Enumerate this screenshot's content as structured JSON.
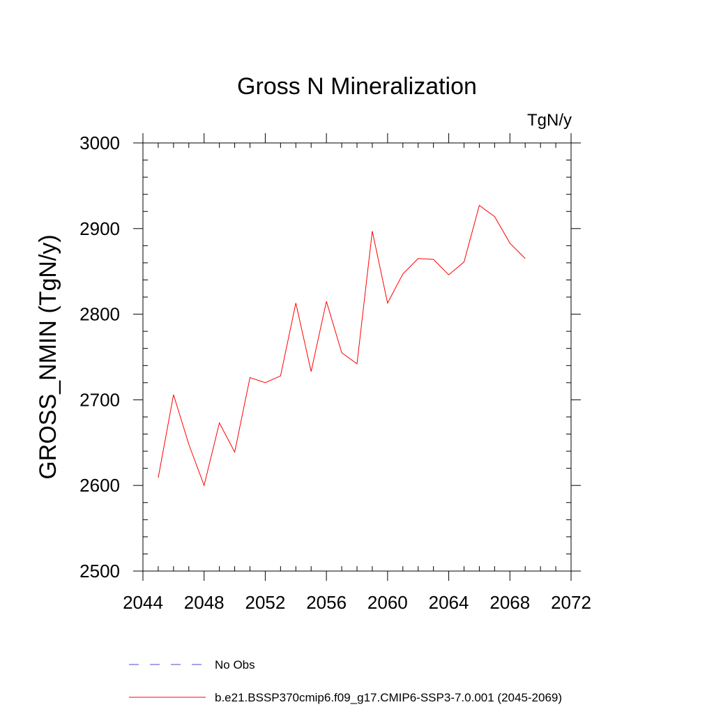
{
  "chart_data": {
    "type": "line",
    "title": "Gross N Mineralization",
    "units_label": "TgN/y",
    "ylabel": "GROSS_NMIN  (TgN/y)",
    "xlabel": "",
    "xlim": [
      2044,
      2072
    ],
    "ylim": [
      2500,
      3000
    ],
    "x_major_ticks": [
      2044,
      2048,
      2052,
      2056,
      2060,
      2064,
      2068,
      2072
    ],
    "x_minor_step": 1,
    "y_major_ticks": [
      2500,
      2600,
      2700,
      2800,
      2900,
      3000
    ],
    "y_minor_step": 20,
    "grid": false,
    "legend_position": "bottom",
    "series": [
      {
        "name": "b.e21.BSSP370cmip6.f09_g17.CMIP6-SSP3-7.0.001 (2045-2069)",
        "color": "#ff0000",
        "style": "solid",
        "x": [
          2045,
          2046,
          2047,
          2048,
          2049,
          2050,
          2051,
          2052,
          2053,
          2054,
          2055,
          2056,
          2057,
          2058,
          2059,
          2060,
          2061,
          2062,
          2063,
          2064,
          2065,
          2066,
          2067,
          2068,
          2069
        ],
        "y": [
          2609,
          2706,
          2648,
          2600,
          2673,
          2639,
          2726,
          2720,
          2728,
          2813,
          2733,
          2815,
          2755,
          2742,
          2897,
          2813,
          2847,
          2865,
          2864,
          2846,
          2861,
          2927,
          2914,
          2883,
          2865
        ]
      }
    ],
    "legend": [
      {
        "label": "No Obs",
        "color": "#4a4ad0",
        "style": "dashed"
      },
      {
        "label": "b.e21.BSSP370cmip6.f09_g17.CMIP6-SSP3-7.0.001 (2045-2069)",
        "color": "#ff0000",
        "style": "solid"
      }
    ]
  }
}
